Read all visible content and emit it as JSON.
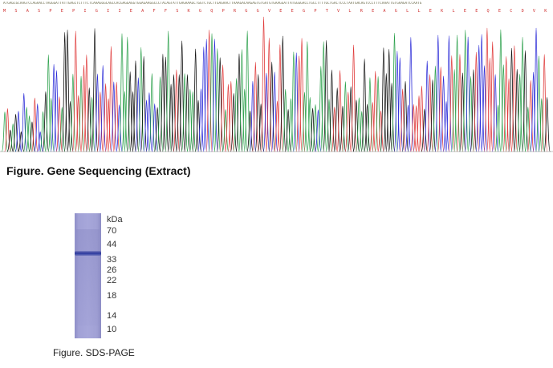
{
  "sequencing": {
    "dna_sequence": "ATGAGCGCAAGTCCAGAACCTAGGGATTATTGAGCTCTTTCTCAAAGGGCAGCCACGAGGAGGTGGAGAAGGCCCTACAGTATTGAGAAAGCTGGTCTGCTTGAGAACTTAAAGACAAGAGTGTGATGTGAAGGATTATGGGGACCTGCCTTTTGCTGACTCCCTAATGACAGTCCCTTTCAAATTGTGAAGATCCAATG",
    "aa_sequence": "M S A S P E P I G I I E A F F S K G Q P R G G V E E G P T V L R E A G L L E K L E E Q E C D V K D ; G D L P F A D S I F N D R P F Q I V K R P R",
    "base_colors": {
      "A": "#2aa04a",
      "C": "#2d2dd8",
      "G": "#111111",
      "T": "#e03a3a"
    }
  },
  "figure_caption_1": "Figure. Gene Sequencing (Extract)",
  "gel": {
    "unit_label": "kDa",
    "markers": [
      "70",
      "44",
      "33",
      "26",
      "22",
      "18",
      "14",
      "10"
    ],
    "lane_color": "#a4a4d8",
    "band_color": "#2f3a9c",
    "band_kda": 40
  },
  "figure_caption_2": "Figure. SDS-PAGE"
}
